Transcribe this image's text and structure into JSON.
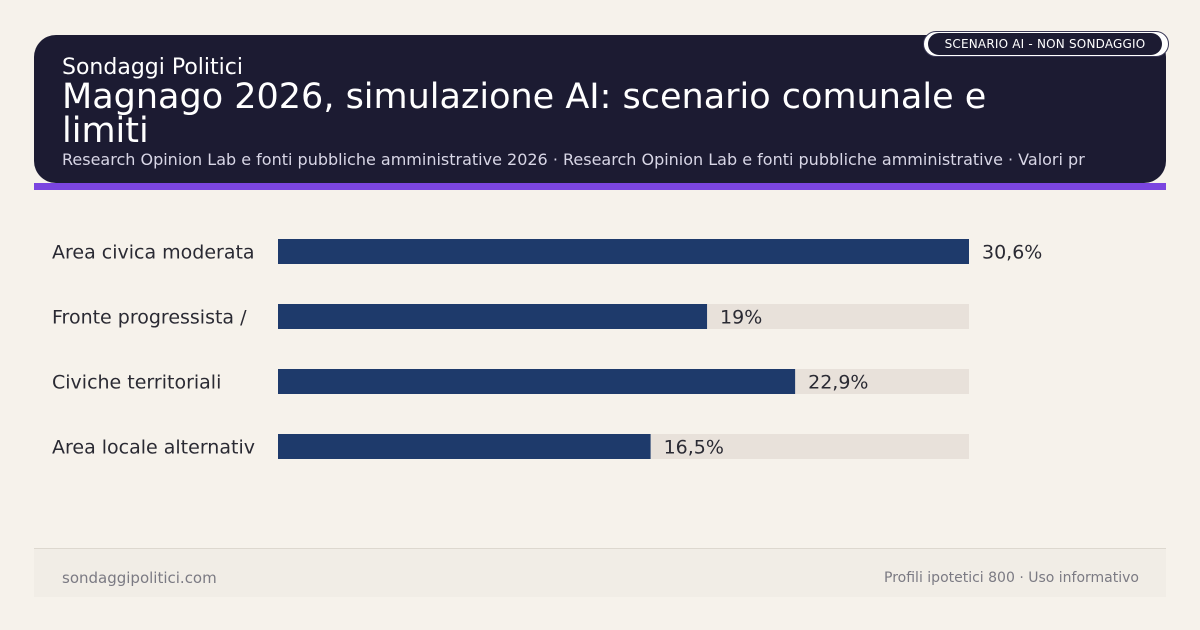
{
  "header": {
    "brand": "Sondaggi Politici",
    "title": "Magnago 2026, simulazione AI: scenario comunale e limiti",
    "subtitle": "Research Opinion Lab e fonti pubbliche amministrative 2026 · Research Opinion Lab e fonti pubbliche amministrative · Valori pr",
    "badge": "SCENARIO AI - NON SONDAGGIO"
  },
  "colors": {
    "bar": "#1e3a6b",
    "track": "#e8e1da",
    "header_bg": "#1c1b32",
    "accent": "#7b45e0",
    "page_bg": "#f6f2eb"
  },
  "chart_data": {
    "type": "bar",
    "orientation": "horizontal",
    "categories": [
      "Area civica moderata",
      "Fronte progressista /",
      "Civiche territoriali",
      "Area locale alternativ"
    ],
    "values": [
      30.6,
      19,
      22.9,
      16.5
    ],
    "value_labels": [
      "30,6%",
      "19%",
      "22,9%",
      "16,5%"
    ],
    "xlim": [
      0,
      30.6
    ],
    "grid": false,
    "legend": "none"
  },
  "footer": {
    "left": "sondaggipolitici.com",
    "right": "Profili ipotetici 800 · Uso informativo"
  }
}
